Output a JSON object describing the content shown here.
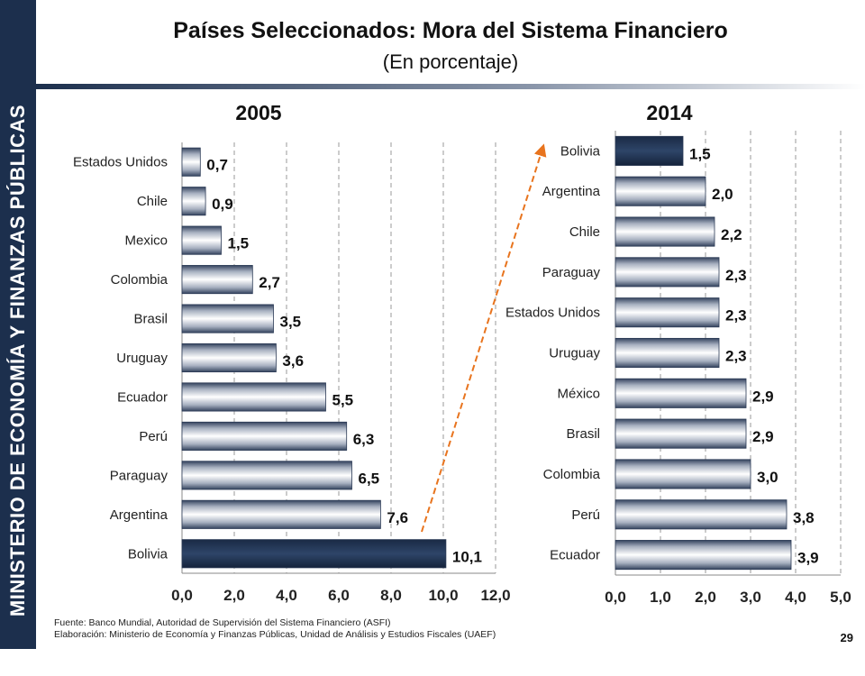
{
  "sidebar": {
    "text": "MINISTERIO DE ECONOMÍA Y FINANZAS PÚBLICAS"
  },
  "header": {
    "title": "Países Seleccionados: Mora del Sistema Financiero",
    "subtitle": "(En porcentaje)"
  },
  "colors": {
    "highlight": "#1c2f4d",
    "bar_edge": "#2b3a55",
    "arrow": "#e8741e",
    "sidebar": "#1c2f4d"
  },
  "chart_data": [
    {
      "type": "bar",
      "orientation": "horizontal",
      "title": "2005",
      "categories": [
        "Estados Unidos",
        "Chile",
        "Mexico",
        "Colombia",
        "Brasil",
        "Uruguay",
        "Ecuador",
        "Perú",
        "Paraguay",
        "Argentina",
        "Bolivia"
      ],
      "values": [
        0.7,
        0.9,
        1.5,
        2.7,
        3.5,
        3.6,
        5.5,
        6.3,
        6.5,
        7.6,
        10.1
      ],
      "value_labels": [
        "0,7",
        "0,9",
        "1,5",
        "2,7",
        "3,5",
        "3,6",
        "5,5",
        "6,3",
        "6,5",
        "7,6",
        "10,1"
      ],
      "highlight": "Bolivia",
      "xlim": [
        0,
        12
      ],
      "xticks": [
        "0,0",
        "2,0",
        "4,0",
        "6,0",
        "8,0",
        "10,0",
        "12,0"
      ],
      "grid": "vertical dashed"
    },
    {
      "type": "bar",
      "orientation": "horizontal",
      "title": "2014",
      "categories": [
        "Bolivia",
        "Argentina",
        "Chile",
        "Paraguay",
        "Estados Unidos",
        "Uruguay",
        "México",
        "Brasil",
        "Colombia",
        "Perú",
        "Ecuador"
      ],
      "values": [
        1.5,
        2.0,
        2.2,
        2.3,
        2.3,
        2.3,
        2.9,
        2.9,
        3.0,
        3.8,
        3.9
      ],
      "value_labels": [
        "1,5",
        "2,0",
        "2,2",
        "2,3",
        "2,3",
        "2,3",
        "2,9",
        "2,9",
        "3,0",
        "3,8",
        "3,9"
      ],
      "highlight": "Bolivia",
      "xlim": [
        0,
        5
      ],
      "xticks": [
        "0,0",
        "1,0",
        "2,0",
        "3,0",
        "4,0",
        "5,0"
      ],
      "grid": "vertical dashed"
    }
  ],
  "footer": {
    "source": "Fuente: Banco Mundial, Autoridad de Supervisión del Sistema Financiero (ASFI)",
    "elaboration": "Elaboración: Ministerio de Economía y Finanzas Públicas, Unidad de Análisis y Estudios Fiscales (UAEF)"
  },
  "page_number": "29"
}
